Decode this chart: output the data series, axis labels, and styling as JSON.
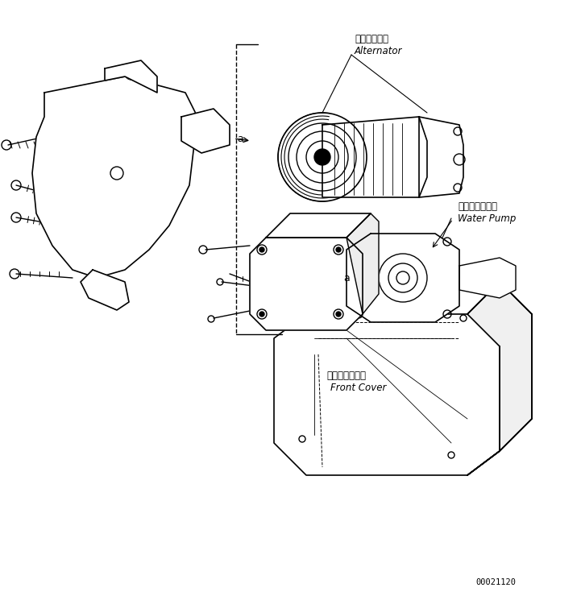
{
  "bg_color": "#ffffff",
  "line_color": "#000000",
  "label_alternator_jp": "オルタネータ",
  "label_alternator_en": "Alternator",
  "label_waterpump_jp": "ウォータポンプ",
  "label_waterpump_en": "Water Pump",
  "label_frontcover_jp": "フロントカバー",
  "label_frontcover_en": "Front Cover",
  "label_a": "a",
  "part_number": "00021120",
  "figsize": [
    7.21,
    7.4
  ],
  "dpi": 100
}
